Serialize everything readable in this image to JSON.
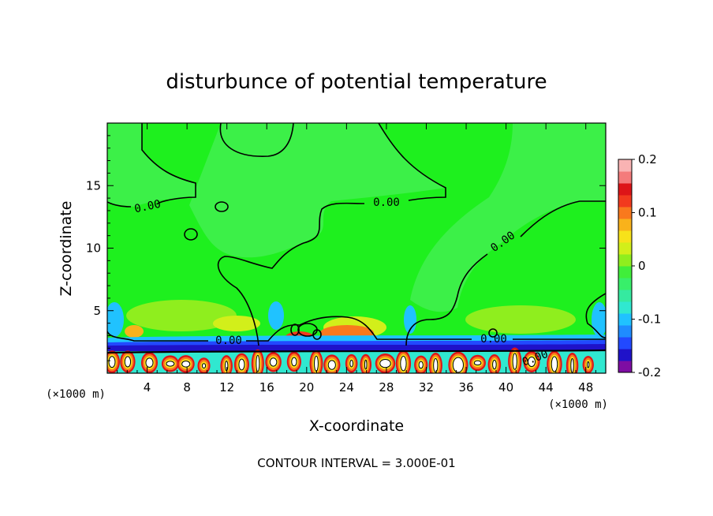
{
  "chart_data": {
    "type": "heatmap",
    "title": "disturbunce of potential temperature",
    "xlabel": "X-coordinate",
    "ylabel": "Z-coordinate",
    "x_unit": "(×1000 m)",
    "z_unit": "(×1000 m)",
    "xlim": [
      0,
      50
    ],
    "ylim": [
      0,
      20
    ],
    "x_ticks": [
      "4",
      "8",
      "12",
      "16",
      "20",
      "24",
      "28",
      "32",
      "36",
      "40",
      "44",
      "48"
    ],
    "y_ticks": [
      "5",
      "10",
      "15"
    ],
    "colorbar": {
      "ticks": [
        "0.2",
        "0.1",
        "0",
        "-0.1",
        "-0.2"
      ],
      "range": [
        -0.2,
        0.2
      ],
      "colors": [
        "#7e0da3",
        "#1f12c9",
        "#2249ff",
        "#1f8cff",
        "#20c2ff",
        "#30e8d0",
        "#35eaa0",
        "#38ef6a",
        "#40ee3a",
        "#8fee1e",
        "#d2ef1a",
        "#f7e21a",
        "#f9b21b",
        "#f9791d",
        "#f23a1e",
        "#dd1518",
        "#f47b7b",
        "#f9b3b3"
      ]
    },
    "contour_labels": [
      "0.00",
      "0.00",
      "0.00",
      "0.00",
      "0.00",
      "0.00"
    ],
    "footer": "CONTOUR INTERVAL = 3.000E-01"
  }
}
